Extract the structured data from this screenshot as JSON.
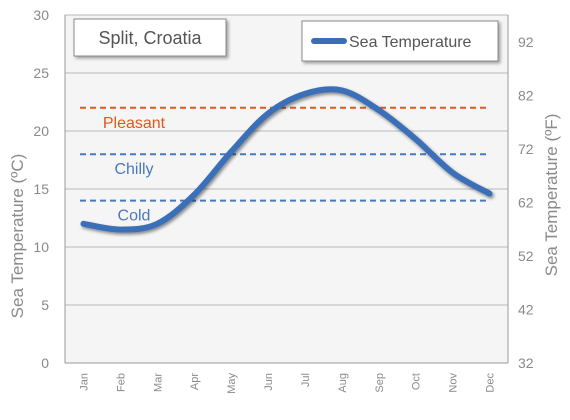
{
  "chart_data": {
    "type": "line",
    "title": "Split, Croatia",
    "categories": [
      "Jan",
      "Feb",
      "Mar",
      "Apr",
      "May",
      "Jun",
      "Jul",
      "Aug",
      "Sep",
      "Oct",
      "Nov",
      "Dec"
    ],
    "series": [
      {
        "name": "Sea Temperature",
        "color": "#3a6fb8",
        "values": [
          12.0,
          11.5,
          12.0,
          14.5,
          18.2,
          21.5,
          23.2,
          23.5,
          21.8,
          19.3,
          16.4,
          14.6
        ]
      }
    ],
    "ylabel": "Sea Temperature (ºC)",
    "ylabel_right": "Sea Temperature (ºF)",
    "ylim": [
      0,
      30
    ],
    "yticks": [
      0,
      5,
      10,
      15,
      20,
      25,
      30
    ],
    "ylim_right": [
      32,
      97
    ],
    "yticks_right": [
      32,
      42,
      52,
      62,
      72,
      82,
      92
    ],
    "reference_lines": [
      {
        "label": "Pleasant",
        "value": 22,
        "color": "#e2571c"
      },
      {
        "label": "Chilly",
        "value": 18,
        "color": "#4a79bd"
      },
      {
        "label": "Cold",
        "value": 14,
        "color": "#4a79bd"
      }
    ],
    "grid": true,
    "legend": "top-right",
    "background": "#f5f5f5"
  }
}
